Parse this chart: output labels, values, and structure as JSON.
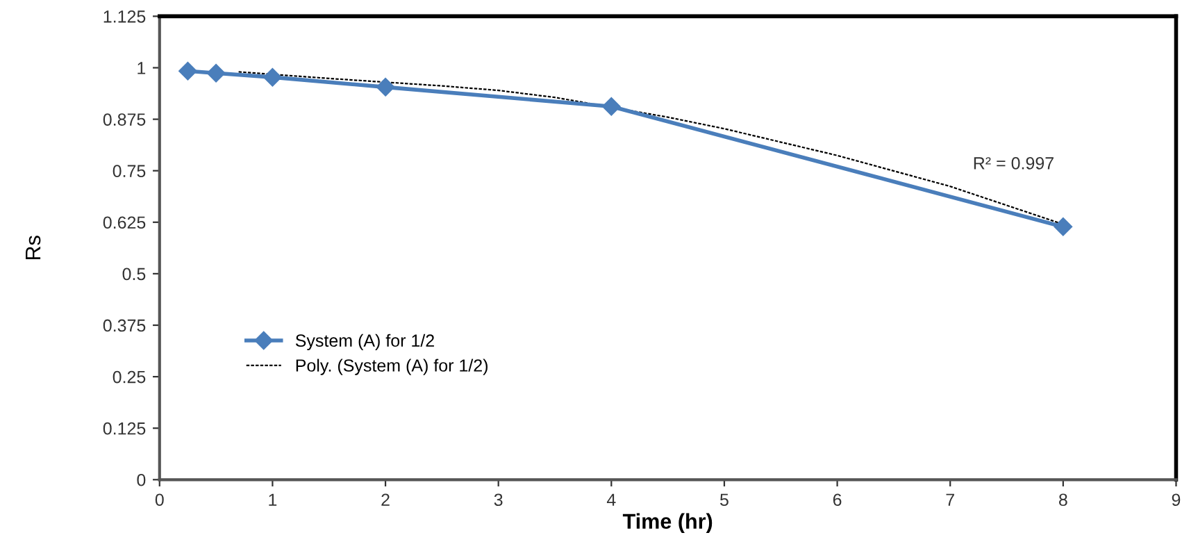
{
  "chart_data": {
    "type": "line",
    "xlabel": "Time (hr)",
    "ylabel": "Rs",
    "xlim": [
      0,
      9
    ],
    "xticks": [
      0,
      1,
      2,
      3,
      4,
      5,
      6,
      7,
      8,
      9
    ],
    "ylim": [
      0,
      1.125
    ],
    "yticks": [
      0,
      0.125,
      0.25,
      0.375,
      0.5,
      0.625,
      0.75,
      0.875,
      1,
      1.125
    ],
    "grid": false,
    "legend": "left",
    "series": [
      {
        "name": "System (A) for 1/2",
        "color": "#4a7ebb",
        "marker": "diamond",
        "line_style": "solid",
        "x": [
          0.25,
          0.5,
          1,
          2,
          4,
          8
        ],
        "values": [
          0.992,
          0.987,
          0.977,
          0.953,
          0.906,
          0.614
        ]
      },
      {
        "name": "Poly. (System (A) for 1/2)",
        "color": "#000000",
        "marker": "none",
        "line_style": "dashed",
        "x": [
          0.7,
          1.5,
          2.5,
          3,
          3.5,
          4.5,
          5,
          6,
          7,
          8
        ],
        "values": [
          0.99,
          0.974,
          0.956,
          0.945,
          0.928,
          0.88,
          0.852,
          0.787,
          0.712,
          0.62
        ]
      }
    ],
    "annotations": [
      "R² = 0.997"
    ]
  }
}
